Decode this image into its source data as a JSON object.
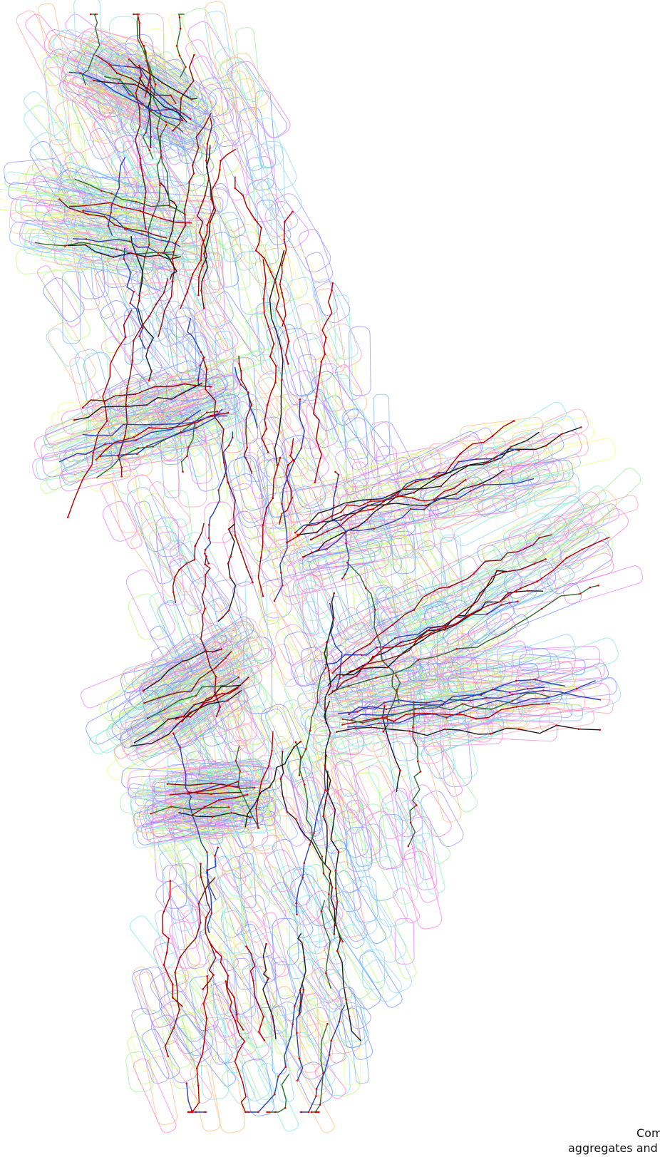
{
  "caption": {
    "line1": "Com",
    "line2": "aggregates and"
  },
  "palette": {
    "outlines": [
      "#7fb3ff",
      "#8fd6ff",
      "#9fef9f",
      "#b8ff70",
      "#f0ff80",
      "#ff9fb0",
      "#ff7fd6",
      "#e57fff",
      "#9f8fff",
      "#ffc07f",
      "#7ff0d6",
      "#6f8fff"
    ],
    "branches": [
      "#b00000",
      "#1a1a1a",
      "#2c3fb0",
      "#2f6b2f",
      "#7a1010"
    ],
    "nodes": "#e00000"
  }
}
